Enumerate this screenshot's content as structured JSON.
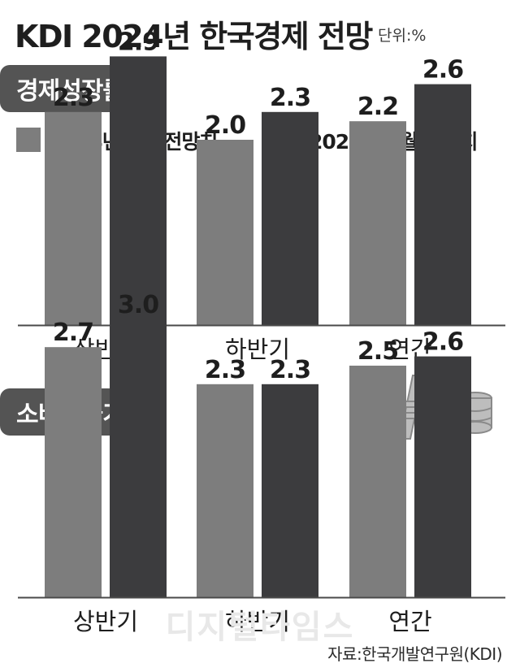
{
  "header": {
    "title": "KDI 2024년 한국경제 전망",
    "unit": "단위:%"
  },
  "legend": {
    "items": [
      {
        "label": "2024년 2월 전망치",
        "color": "#7d7d7d"
      },
      {
        "label": "2024년 5월 전망치",
        "color": "#3c3c3e"
      }
    ]
  },
  "source": "자료:한국개발연구원(KDI)",
  "watermark": "디지털타임스",
  "colors": {
    "section_banner": "#545454",
    "axis_line": "#4a4a4a",
    "icon_fill": "#bdbdbd"
  },
  "icon": "won-coins-icon",
  "chart_data": [
    {
      "type": "bar",
      "title": "경제성장률",
      "categories": [
        "상반기",
        "하반기",
        "연간"
      ],
      "series": [
        {
          "name": "2024년 2월 전망치",
          "values": [
            2.3,
            2.0,
            2.2
          ]
        },
        {
          "name": "2024년 5월 전망치",
          "values": [
            2.9,
            2.3,
            2.6
          ]
        }
      ],
      "unit": "%",
      "grid": false,
      "legend_position": "top-left"
    },
    {
      "type": "bar",
      "title": "소비자물가",
      "categories": [
        "상반기",
        "하반기",
        "연간"
      ],
      "series": [
        {
          "name": "2024년 2월 전망치",
          "values": [
            2.7,
            2.3,
            2.5
          ]
        },
        {
          "name": "2024년 5월 전망치",
          "values": [
            3.0,
            2.3,
            2.6
          ]
        }
      ],
      "unit": "%",
      "grid": false
    }
  ]
}
